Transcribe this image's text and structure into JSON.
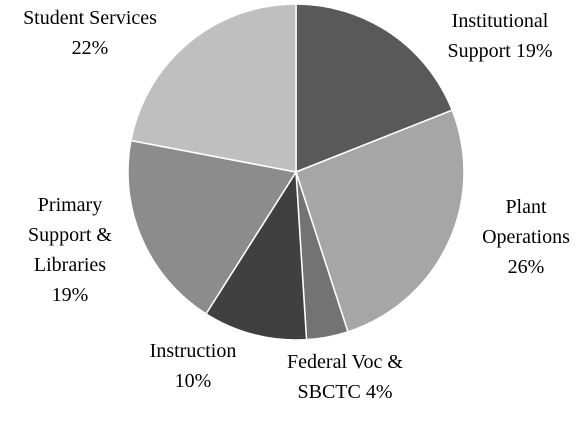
{
  "chart_data": {
    "type": "pie",
    "categories": [
      "Institutional Support",
      "Plant Operations",
      "Federal Voc & SBCTC",
      "Instruction",
      "Primary Support & Libraries",
      "Student Services"
    ],
    "values": [
      19,
      26,
      4,
      10,
      19,
      22
    ],
    "value_labels": [
      "19%",
      "26%",
      "4%",
      "10%",
      "19%",
      "22%"
    ],
    "colors": [
      "#595959",
      "#a6a6a6",
      "#737373",
      "#404040",
      "#8c8c8c",
      "#bfbfbf"
    ]
  }
}
